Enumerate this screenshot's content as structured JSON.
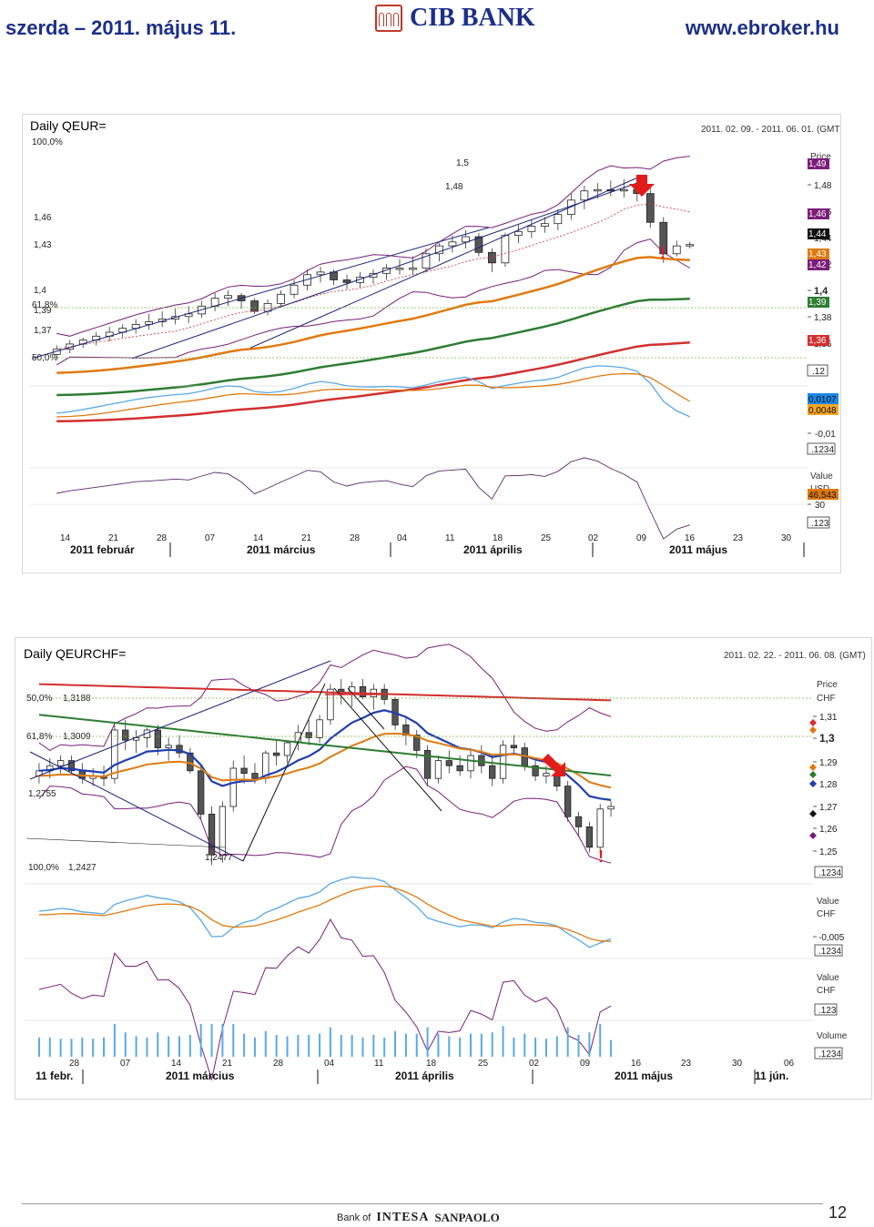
{
  "header": {
    "date": "szerda – 2011. május 11.",
    "bank": "CIB BANK",
    "url": "www.ebroker.hu"
  },
  "chart_data": [
    {
      "type": "candlestick",
      "title": "Daily QEUR=",
      "date_range": "2011. 02. 09. - 2011. 06. 01. (GMT)",
      "price_axis_title": "Price",
      "price_ticks": [
        "1,48",
        "1,46",
        "1,44",
        "1,42",
        "1,4",
        "1,38",
        "1,36"
      ],
      "left_labels": [
        "100,0%",
        "1,5",
        "1,48",
        "1,46",
        "1,43",
        "1,4",
        "61,8%",
        "1,39",
        "1,37",
        "50,0%"
      ],
      "price_badges": [
        {
          "text": "1,49",
          "color": "#7b1e7a"
        },
        {
          "text": "1,46",
          "color": "#7b1e7a"
        },
        {
          "text": "1,44",
          "color": "#111111"
        },
        {
          "text": "1,43",
          "color": "#e07a10"
        },
        {
          "text": "1,42",
          "color": "#7b1e7a"
        },
        {
          "text": "1,39",
          "color": "#2e7d32"
        },
        {
          "text": "1,36",
          "color": "#d32f2f"
        }
      ],
      "close_box": ".12",
      "indicator_values": [
        {
          "text": "0,0107",
          "color": "#1e88e5"
        },
        {
          "text": "0,0048",
          "color": "#f5a623"
        }
      ],
      "indicator_ticks": [
        "-0,01"
      ],
      "indicator_box": ".1234",
      "rsi_axis_title": "Value",
      "rsi_unit": "USD",
      "rsi_value": "46,543",
      "rsi_ticks": [
        "30"
      ],
      "rsi_box": ".123",
      "x_ticks": [
        "14",
        "21",
        "28",
        "07",
        "14",
        "21",
        "28",
        "04",
        "11",
        "18",
        "25",
        "02",
        "09",
        "16",
        "23",
        "30"
      ],
      "months": [
        "2011 február",
        "2011 március",
        "2011 április",
        "2011 május"
      ],
      "ylim": [
        1.34,
        1.5
      ],
      "candles": [
        {
          "o": 1.355,
          "h": 1.362,
          "l": 1.352,
          "c": 1.359
        },
        {
          "o": 1.359,
          "h": 1.366,
          "l": 1.356,
          "c": 1.363
        },
        {
          "o": 1.363,
          "h": 1.368,
          "l": 1.36,
          "c": 1.366
        },
        {
          "o": 1.366,
          "h": 1.372,
          "l": 1.362,
          "c": 1.369
        },
        {
          "o": 1.369,
          "h": 1.376,
          "l": 1.365,
          "c": 1.372
        },
        {
          "o": 1.372,
          "h": 1.378,
          "l": 1.368,
          "c": 1.375
        },
        {
          "o": 1.375,
          "h": 1.382,
          "l": 1.371,
          "c": 1.378
        },
        {
          "o": 1.378,
          "h": 1.386,
          "l": 1.374,
          "c": 1.38
        },
        {
          "o": 1.38,
          "h": 1.388,
          "l": 1.376,
          "c": 1.382
        },
        {
          "o": 1.382,
          "h": 1.39,
          "l": 1.378,
          "c": 1.384
        },
        {
          "o": 1.384,
          "h": 1.392,
          "l": 1.379,
          "c": 1.386
        },
        {
          "o": 1.386,
          "h": 1.396,
          "l": 1.383,
          "c": 1.392
        },
        {
          "o": 1.392,
          "h": 1.402,
          "l": 1.388,
          "c": 1.398
        },
        {
          "o": 1.398,
          "h": 1.404,
          "l": 1.392,
          "c": 1.4
        },
        {
          "o": 1.4,
          "h": 1.402,
          "l": 1.39,
          "c": 1.396
        },
        {
          "o": 1.396,
          "h": 1.398,
          "l": 1.386,
          "c": 1.388
        },
        {
          "o": 1.388,
          "h": 1.397,
          "l": 1.385,
          "c": 1.394
        },
        {
          "o": 1.394,
          "h": 1.404,
          "l": 1.391,
          "c": 1.401
        },
        {
          "o": 1.401,
          "h": 1.412,
          "l": 1.398,
          "c": 1.408
        },
        {
          "o": 1.408,
          "h": 1.42,
          "l": 1.404,
          "c": 1.416
        },
        {
          "o": 1.416,
          "h": 1.422,
          "l": 1.41,
          "c": 1.418
        },
        {
          "o": 1.418,
          "h": 1.42,
          "l": 1.408,
          "c": 1.412
        },
        {
          "o": 1.412,
          "h": 1.416,
          "l": 1.405,
          "c": 1.41
        },
        {
          "o": 1.41,
          "h": 1.418,
          "l": 1.406,
          "c": 1.414
        },
        {
          "o": 1.414,
          "h": 1.42,
          "l": 1.409,
          "c": 1.417
        },
        {
          "o": 1.417,
          "h": 1.424,
          "l": 1.412,
          "c": 1.421
        },
        {
          "o": 1.421,
          "h": 1.428,
          "l": 1.416,
          "c": 1.421
        },
        {
          "o": 1.421,
          "h": 1.43,
          "l": 1.416,
          "c": 1.421
        },
        {
          "o": 1.421,
          "h": 1.436,
          "l": 1.418,
          "c": 1.432
        },
        {
          "o": 1.432,
          "h": 1.44,
          "l": 1.426,
          "c": 1.438
        },
        {
          "o": 1.438,
          "h": 1.446,
          "l": 1.433,
          "c": 1.441
        },
        {
          "o": 1.441,
          "h": 1.45,
          "l": 1.436,
          "c": 1.445
        },
        {
          "o": 1.445,
          "h": 1.448,
          "l": 1.43,
          "c": 1.433
        },
        {
          "o": 1.433,
          "h": 1.436,
          "l": 1.418,
          "c": 1.425
        },
        {
          "o": 1.425,
          "h": 1.448,
          "l": 1.422,
          "c": 1.446
        },
        {
          "o": 1.446,
          "h": 1.454,
          "l": 1.44,
          "c": 1.449
        },
        {
          "o": 1.449,
          "h": 1.458,
          "l": 1.444,
          "c": 1.453
        },
        {
          "o": 1.453,
          "h": 1.46,
          "l": 1.448,
          "c": 1.455
        },
        {
          "o": 1.455,
          "h": 1.466,
          "l": 1.45,
          "c": 1.462
        },
        {
          "o": 1.462,
          "h": 1.478,
          "l": 1.458,
          "c": 1.473
        },
        {
          "o": 1.473,
          "h": 1.484,
          "l": 1.466,
          "c": 1.48
        },
        {
          "o": 1.48,
          "h": 1.486,
          "l": 1.474,
          "c": 1.481
        },
        {
          "o": 1.481,
          "h": 1.488,
          "l": 1.476,
          "c": 1.48
        },
        {
          "o": 1.48,
          "h": 1.489,
          "l": 1.475,
          "c": 1.481
        },
        {
          "o": 1.481,
          "h": 1.49,
          "l": 1.472,
          "c": 1.478
        },
        {
          "o": 1.478,
          "h": 1.482,
          "l": 1.452,
          "c": 1.456
        },
        {
          "o": 1.456,
          "h": 1.46,
          "l": 1.425,
          "c": 1.432
        },
        {
          "o": 1.432,
          "h": 1.442,
          "l": 1.43,
          "c": 1.438
        },
        {
          "o": 1.438,
          "h": 1.441,
          "l": 1.436,
          "c": 1.439
        }
      ]
    },
    {
      "type": "candlestick",
      "title": "Daily QEURCHF=",
      "date_range": "2011. 02. 22. - 2011. 06. 08. (GMT)",
      "price_axis_title": "Price",
      "price_unit": "CHF",
      "price_ticks": [
        "1,31",
        "1,3",
        "1,29",
        "1,28",
        "1,27",
        "1,26",
        "1,25"
      ],
      "left_labels": [
        "50,0%",
        "1,3188",
        "61,8%",
        "1,3009",
        "1,2755",
        "100,0%",
        "1,2427",
        "1,2477"
      ],
      "close_box": ".1234",
      "macd_axis_title": "Value",
      "macd_unit": "CHF",
      "macd_ticks": [
        "-0,005"
      ],
      "macd_box": ".1234",
      "sto_axis_title": "Value",
      "sto_unit": "CHF",
      "sto_box": ".123",
      "volume_axis_title": "Volume",
      "volume_box": ".1234",
      "x_ticks": [
        "28",
        "07",
        "14",
        "21",
        "28",
        "04",
        "11",
        "18",
        "25",
        "02",
        "09",
        "16",
        "23",
        "30",
        "06"
      ],
      "months": [
        "11 febr.",
        "2011 március",
        "2011 április",
        "2011 május",
        "11 jún."
      ],
      "ylim": [
        1.245,
        1.32
      ],
      "candles": [
        {
          "o": 1.282,
          "h": 1.287,
          "l": 1.279,
          "c": 1.284
        },
        {
          "o": 1.284,
          "h": 1.289,
          "l": 1.281,
          "c": 1.286
        },
        {
          "o": 1.286,
          "h": 1.29,
          "l": 1.283,
          "c": 1.288
        },
        {
          "o": 1.288,
          "h": 1.29,
          "l": 1.283,
          "c": 1.284
        },
        {
          "o": 1.284,
          "h": 1.287,
          "l": 1.279,
          "c": 1.281
        },
        {
          "o": 1.281,
          "h": 1.285,
          "l": 1.278,
          "c": 1.282
        },
        {
          "o": 1.282,
          "h": 1.286,
          "l": 1.278,
          "c": 1.281
        },
        {
          "o": 1.281,
          "h": 1.302,
          "l": 1.279,
          "c": 1.3
        },
        {
          "o": 1.3,
          "h": 1.304,
          "l": 1.292,
          "c": 1.296
        },
        {
          "o": 1.296,
          "h": 1.3,
          "l": 1.291,
          "c": 1.297
        },
        {
          "o": 1.297,
          "h": 1.301,
          "l": 1.293,
          "c": 1.3
        },
        {
          "o": 1.3,
          "h": 1.302,
          "l": 1.29,
          "c": 1.293
        },
        {
          "o": 1.293,
          "h": 1.297,
          "l": 1.288,
          "c": 1.294
        },
        {
          "o": 1.294,
          "h": 1.298,
          "l": 1.289,
          "c": 1.291
        },
        {
          "o": 1.291,
          "h": 1.293,
          "l": 1.283,
          "c": 1.284
        },
        {
          "o": 1.284,
          "h": 1.286,
          "l": 1.265,
          "c": 1.267
        },
        {
          "o": 1.267,
          "h": 1.27,
          "l": 1.247,
          "c": 1.251
        },
        {
          "o": 1.251,
          "h": 1.272,
          "l": 1.248,
          "c": 1.27
        },
        {
          "o": 1.27,
          "h": 1.288,
          "l": 1.268,
          "c": 1.285
        },
        {
          "o": 1.285,
          "h": 1.29,
          "l": 1.279,
          "c": 1.283
        },
        {
          "o": 1.283,
          "h": 1.287,
          "l": 1.279,
          "c": 1.281
        },
        {
          "o": 1.281,
          "h": 1.292,
          "l": 1.279,
          "c": 1.291
        },
        {
          "o": 1.291,
          "h": 1.296,
          "l": 1.286,
          "c": 1.29
        },
        {
          "o": 1.29,
          "h": 1.296,
          "l": 1.287,
          "c": 1.295
        },
        {
          "o": 1.295,
          "h": 1.302,
          "l": 1.292,
          "c": 1.299
        },
        {
          "o": 1.299,
          "h": 1.304,
          "l": 1.294,
          "c": 1.297
        },
        {
          "o": 1.297,
          "h": 1.306,
          "l": 1.295,
          "c": 1.304
        },
        {
          "o": 1.304,
          "h": 1.318,
          "l": 1.302,
          "c": 1.316
        },
        {
          "o": 1.316,
          "h": 1.32,
          "l": 1.31,
          "c": 1.314
        },
        {
          "o": 1.314,
          "h": 1.319,
          "l": 1.309,
          "c": 1.317
        },
        {
          "o": 1.317,
          "h": 1.32,
          "l": 1.312,
          "c": 1.313
        },
        {
          "o": 1.313,
          "h": 1.318,
          "l": 1.308,
          "c": 1.316
        },
        {
          "o": 1.316,
          "h": 1.318,
          "l": 1.31,
          "c": 1.312
        },
        {
          "o": 1.312,
          "h": 1.313,
          "l": 1.3,
          "c": 1.302
        },
        {
          "o": 1.302,
          "h": 1.305,
          "l": 1.294,
          "c": 1.298
        },
        {
          "o": 1.298,
          "h": 1.3,
          "l": 1.289,
          "c": 1.292
        },
        {
          "o": 1.292,
          "h": 1.294,
          "l": 1.278,
          "c": 1.281
        },
        {
          "o": 1.281,
          "h": 1.29,
          "l": 1.279,
          "c": 1.288
        },
        {
          "o": 1.288,
          "h": 1.292,
          "l": 1.283,
          "c": 1.286
        },
        {
          "o": 1.286,
          "h": 1.29,
          "l": 1.282,
          "c": 1.284
        },
        {
          "o": 1.284,
          "h": 1.292,
          "l": 1.281,
          "c": 1.29
        },
        {
          "o": 1.29,
          "h": 1.294,
          "l": 1.283,
          "c": 1.286
        },
        {
          "o": 1.286,
          "h": 1.29,
          "l": 1.278,
          "c": 1.281
        },
        {
          "o": 1.281,
          "h": 1.296,
          "l": 1.279,
          "c": 1.294
        },
        {
          "o": 1.294,
          "h": 1.298,
          "l": 1.29,
          "c": 1.293
        },
        {
          "o": 1.293,
          "h": 1.295,
          "l": 1.284,
          "c": 1.286
        },
        {
          "o": 1.286,
          "h": 1.288,
          "l": 1.28,
          "c": 1.282
        },
        {
          "o": 1.282,
          "h": 1.286,
          "l": 1.279,
          "c": 1.283
        },
        {
          "o": 1.283,
          "h": 1.285,
          "l": 1.276,
          "c": 1.278
        },
        {
          "o": 1.278,
          "h": 1.28,
          "l": 1.264,
          "c": 1.266
        },
        {
          "o": 1.266,
          "h": 1.268,
          "l": 1.258,
          "c": 1.262
        },
        {
          "o": 1.262,
          "h": 1.264,
          "l": 1.252,
          "c": 1.254
        },
        {
          "o": 1.254,
          "h": 1.271,
          "l": 1.252,
          "c": 1.269
        },
        {
          "o": 1.269,
          "h": 1.272,
          "l": 1.266,
          "c": 1.27
        }
      ]
    }
  ],
  "footer": {
    "bank_of": "Bank of",
    "intesa": "INTESA",
    "sanpaolo": "SANPAOLO",
    "page": "12"
  },
  "colors": {
    "header_text": "#1b2f8a",
    "ma_red": "#d32f2f",
    "ma_green": "#2e7d32",
    "ma_orange": "#e07a10",
    "band_purple": "#7b1e7a",
    "trend_blue": "#1a237e",
    "line_blue": "#1e3fb0"
  }
}
